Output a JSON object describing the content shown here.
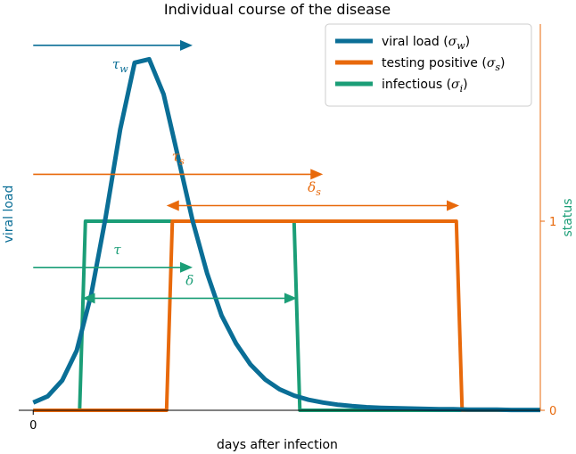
{
  "chart_data": {
    "type": "line",
    "title": "Individual course of the disease",
    "xlabel": "days after infection",
    "ylabel_left": "viral load",
    "ylabel_right": "status",
    "x_ticks": [
      "0"
    ],
    "y_right_ticks": [
      "0",
      "1"
    ],
    "xlim": [
      -0.5,
      17.5
    ],
    "ylim_left": [
      0,
      1.1
    ],
    "ylim_right": [
      0,
      1.0
    ],
    "grid": false,
    "legend_position": "top-right",
    "colors": {
      "viral": "#0a6e96",
      "testing": "#e8690b",
      "infectious": "#1b9e77",
      "axis": "#000000"
    },
    "series": [
      {
        "name": "viral load (σ_w)",
        "legend_main": "viral load (",
        "legend_sym": "σ",
        "legend_sub": "w",
        "color_key": "viral",
        "axis": "left",
        "x": [
          0,
          0.5,
          1,
          1.5,
          2,
          2.5,
          3,
          3.5,
          4,
          4.5,
          5,
          5.5,
          6,
          6.5,
          7,
          7.5,
          8,
          8.5,
          9,
          9.5,
          10,
          10.5,
          11,
          11.5,
          12,
          12.5,
          13,
          13.5,
          14,
          14.5,
          15,
          15.5,
          16,
          16.5,
          17,
          17.5
        ],
        "y": [
          0.022,
          0.04,
          0.085,
          0.17,
          0.33,
          0.55,
          0.8,
          0.99,
          1.0,
          0.9,
          0.72,
          0.54,
          0.39,
          0.27,
          0.19,
          0.13,
          0.088,
          0.06,
          0.042,
          0.03,
          0.022,
          0.016,
          0.012,
          0.009,
          0.007,
          0.006,
          0.005,
          0.004,
          0.003,
          0.003,
          0.002,
          0.002,
          0.002,
          0.001,
          0.001,
          0.001
        ]
      },
      {
        "name": "testing positive (σ_s)",
        "legend_main": "testing positive (",
        "legend_sym": "σ",
        "legend_sub": "s",
        "color_key": "testing",
        "axis": "right",
        "x": [
          0,
          4.6,
          4.8,
          14.6,
          14.8,
          17.5
        ],
        "y": [
          0,
          0,
          1,
          1,
          0,
          0
        ]
      },
      {
        "name": "infectious (σ_i)",
        "legend_main": "infectious (",
        "legend_sym": "σ",
        "legend_sub": "i",
        "color_key": "infectious",
        "axis": "right",
        "x": [
          0,
          1.6,
          1.8,
          9.0,
          9.2,
          17.5
        ],
        "y": [
          0,
          0,
          1,
          1,
          0,
          0
        ]
      }
    ],
    "annotations": [
      {
        "label": "τ",
        "sub": "w",
        "kind": "right",
        "x0": 0,
        "x1": 5.5,
        "y_frac": 0.945,
        "color_key": "viral",
        "label_x": 3.0,
        "label_y_frac": 0.884
      },
      {
        "label": "τ",
        "sub": "s",
        "kind": "right",
        "x0": 0,
        "x1": 10.0,
        "y_frac": 0.611,
        "color_key": "testing",
        "label_x": 5.0,
        "label_y_frac": 0.645
      },
      {
        "label": "δ",
        "sub": "s",
        "kind": "double",
        "x0": 4.6,
        "x1": 14.7,
        "y_frac": 0.53,
        "color_key": "testing",
        "label_x": 9.7,
        "label_y_frac": 0.566
      },
      {
        "label": "τ",
        "sub": "",
        "kind": "right",
        "x0": 0,
        "x1": 5.5,
        "y_frac": 0.37,
        "color_key": "infectious",
        "label_x": 2.9,
        "label_y_frac": 0.404
      },
      {
        "label": "δ",
        "sub": "",
        "kind": "double",
        "x0": 1.7,
        "x1": 9.1,
        "y_frac": 0.29,
        "color_key": "infectious",
        "label_x": 5.4,
        "label_y_frac": 0.325
      }
    ]
  }
}
